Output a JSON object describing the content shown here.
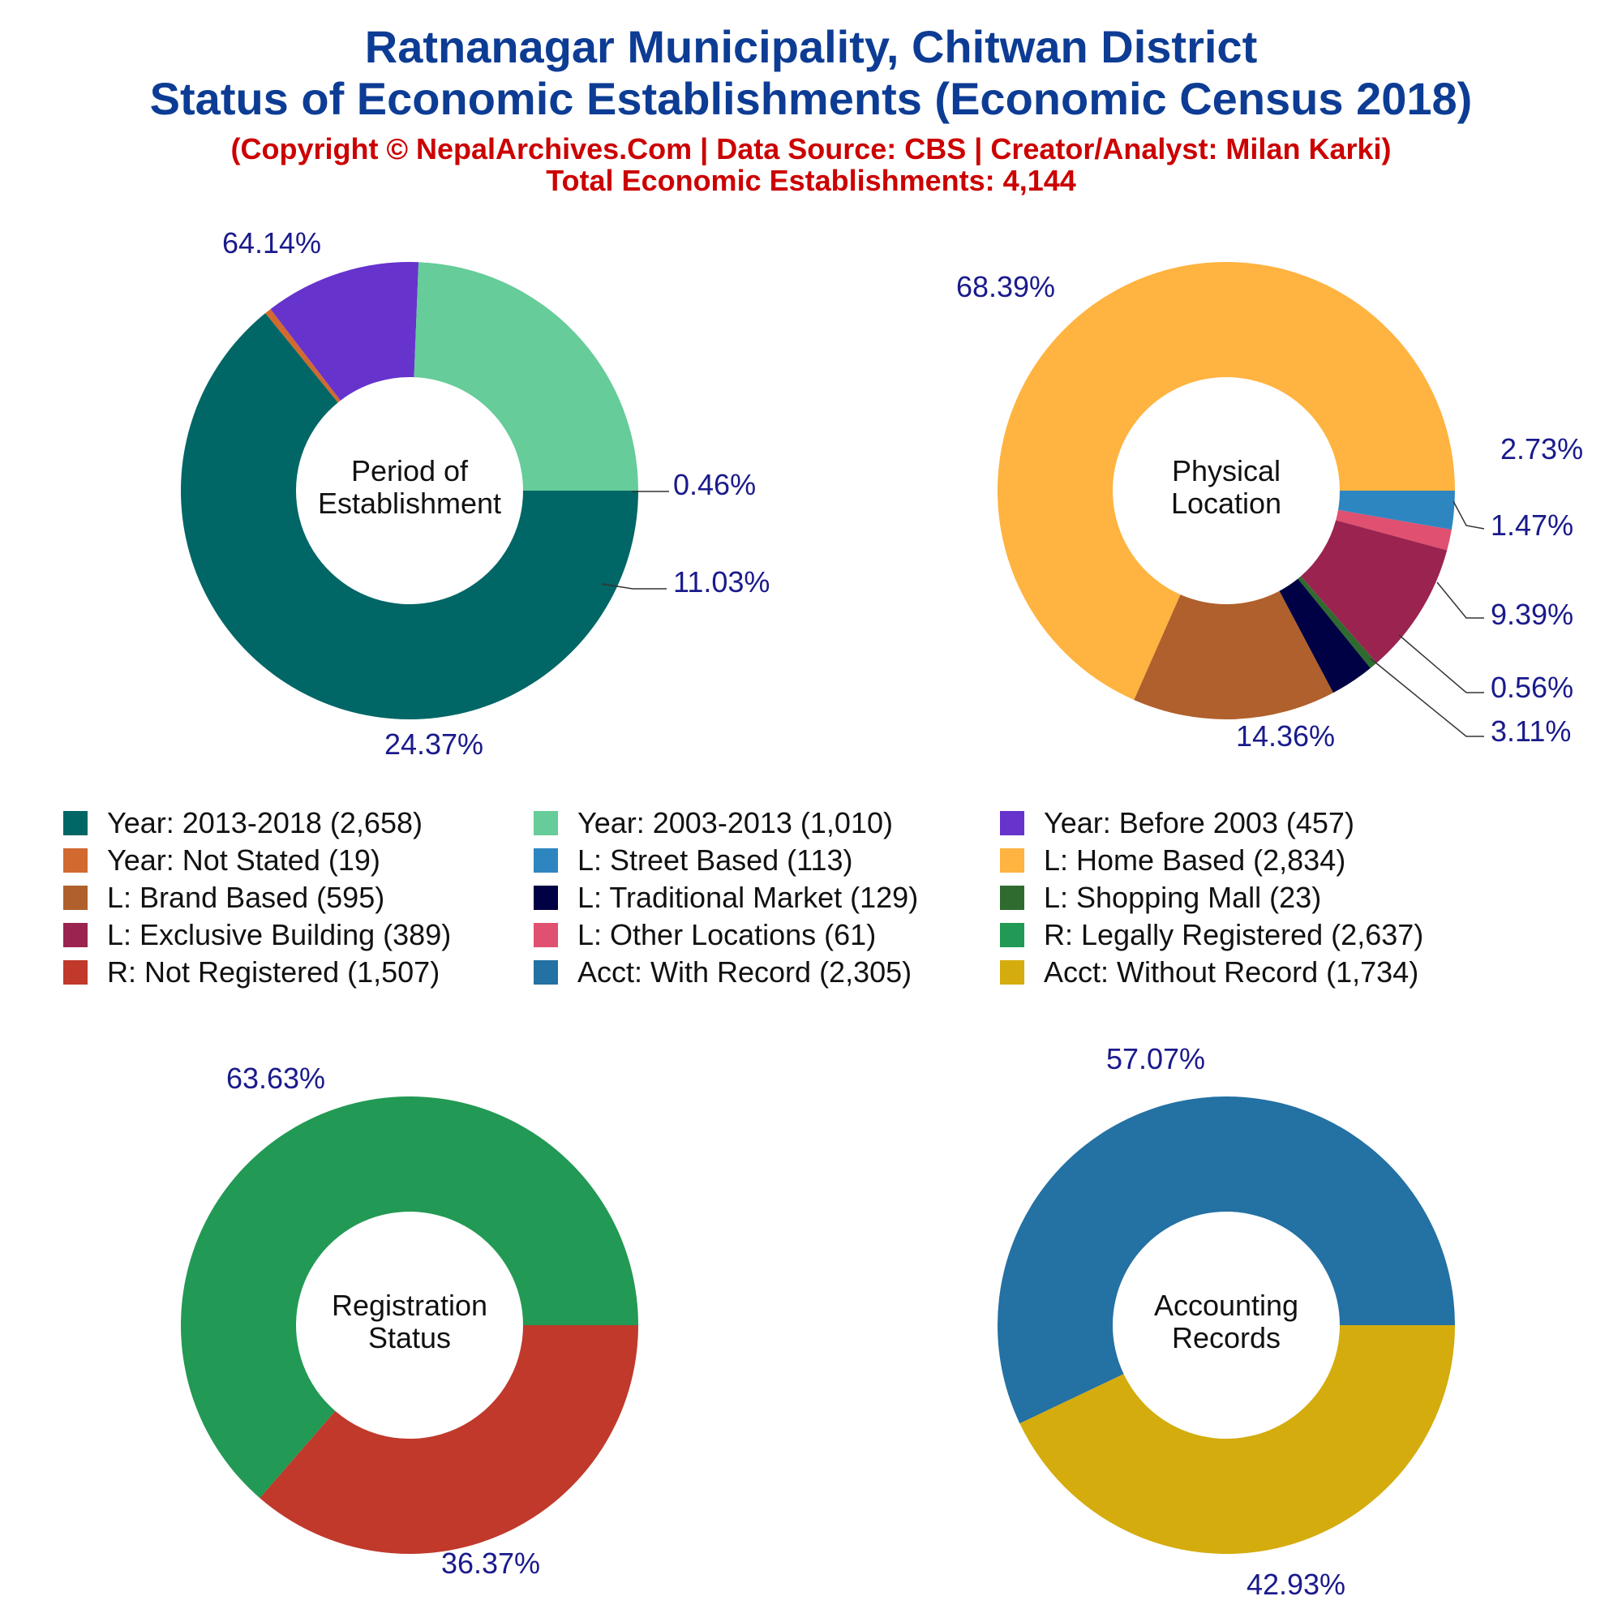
{
  "header": {
    "title_line1": "Ratnanagar Municipality, Chitwan District",
    "title_line2": "Status of Economic Establishments (Economic Census 2018)",
    "subtitle_line1": "(Copyright © NepalArchives.Com | Data Source: CBS | Creator/Analyst: Milan Karki)",
    "subtitle_line2": "Total Economic Establishments: 4,144"
  },
  "chart_data": [
    {
      "type": "pie",
      "center_label": [
        "Period of",
        "Establishment"
      ],
      "slices": [
        {
          "label": "Year: 2013-2018",
          "value": 2658,
          "percent": "64.14%",
          "color": "#006666"
        },
        {
          "label": "Year: Not Stated",
          "value": 19,
          "percent": "0.46%",
          "color": "#d2692f"
        },
        {
          "label": "Year: Before 2003",
          "value": 457,
          "percent": "11.03%",
          "color": "#6633cc"
        },
        {
          "label": "Year: 2003-2013",
          "value": 1010,
          "percent": "24.37%",
          "color": "#66cc99"
        }
      ]
    },
    {
      "type": "pie",
      "center_label": [
        "Physical",
        "Location"
      ],
      "slices": [
        {
          "label": "L: Street Based",
          "value": 113,
          "percent": "2.73%",
          "color": "#2e86c1"
        },
        {
          "label": "L: Other Locations",
          "value": 61,
          "percent": "1.47%",
          "color": "#e05070"
        },
        {
          "label": "L: Exclusive Building",
          "value": 389,
          "percent": "9.39%",
          "color": "#9b2350"
        },
        {
          "label": "L: Shopping Mall",
          "value": 23,
          "percent": "0.56%",
          "color": "#2f6b2f"
        },
        {
          "label": "L: Traditional Market",
          "value": 129,
          "percent": "3.11%",
          "color": "#000044"
        },
        {
          "label": "L: Brand Based",
          "value": 595,
          "percent": "14.36%",
          "color": "#b0602c"
        },
        {
          "label": "L: Home Based",
          "value": 2834,
          "percent": "68.39%",
          "color": "#ffb340"
        }
      ]
    },
    {
      "type": "pie",
      "center_label": [
        "Registration",
        "Status"
      ],
      "slices": [
        {
          "label": "R: Not Registered",
          "value": 1507,
          "percent": "36.37%",
          "color": "#c0392b"
        },
        {
          "label": "R: Legally Registered",
          "value": 2637,
          "percent": "63.63%",
          "color": "#229954"
        }
      ]
    },
    {
      "type": "pie",
      "center_label": [
        "Accounting",
        "Records"
      ],
      "slices": [
        {
          "label": "Acct: Without Record",
          "value": 1734,
          "percent": "42.93%",
          "color": "#d4ac0d"
        },
        {
          "label": "Acct: With Record",
          "value": 2305,
          "percent": "57.07%",
          "color": "#2471a3"
        }
      ]
    }
  ],
  "legend": [
    {
      "label": "Year: 2013-2018 (2,658)",
      "color": "#006666"
    },
    {
      "label": "Year: 2003-2013 (1,010)",
      "color": "#66cc99"
    },
    {
      "label": "Year: Before 2003 (457)",
      "color": "#6633cc"
    },
    {
      "label": "Year: Not Stated (19)",
      "color": "#d2692f"
    },
    {
      "label": "L: Street Based (113)",
      "color": "#2e86c1"
    },
    {
      "label": "L: Home Based (2,834)",
      "color": "#ffb340"
    },
    {
      "label": "L: Brand Based (595)",
      "color": "#b0602c"
    },
    {
      "label": "L: Traditional Market (129)",
      "color": "#000044"
    },
    {
      "label": "L: Shopping Mall (23)",
      "color": "#2f6b2f"
    },
    {
      "label": "L: Exclusive Building (389)",
      "color": "#9b2350"
    },
    {
      "label": "L: Other Locations (61)",
      "color": "#e05070"
    },
    {
      "label": "R: Legally Registered (2,637)",
      "color": "#229954"
    },
    {
      "label": "R: Not Registered (1,507)",
      "color": "#c0392b"
    },
    {
      "label": "Acct: With Record (2,305)",
      "color": "#2471a3"
    },
    {
      "label": "Acct: Without Record (1,734)",
      "color": "#d4ac0d"
    }
  ]
}
